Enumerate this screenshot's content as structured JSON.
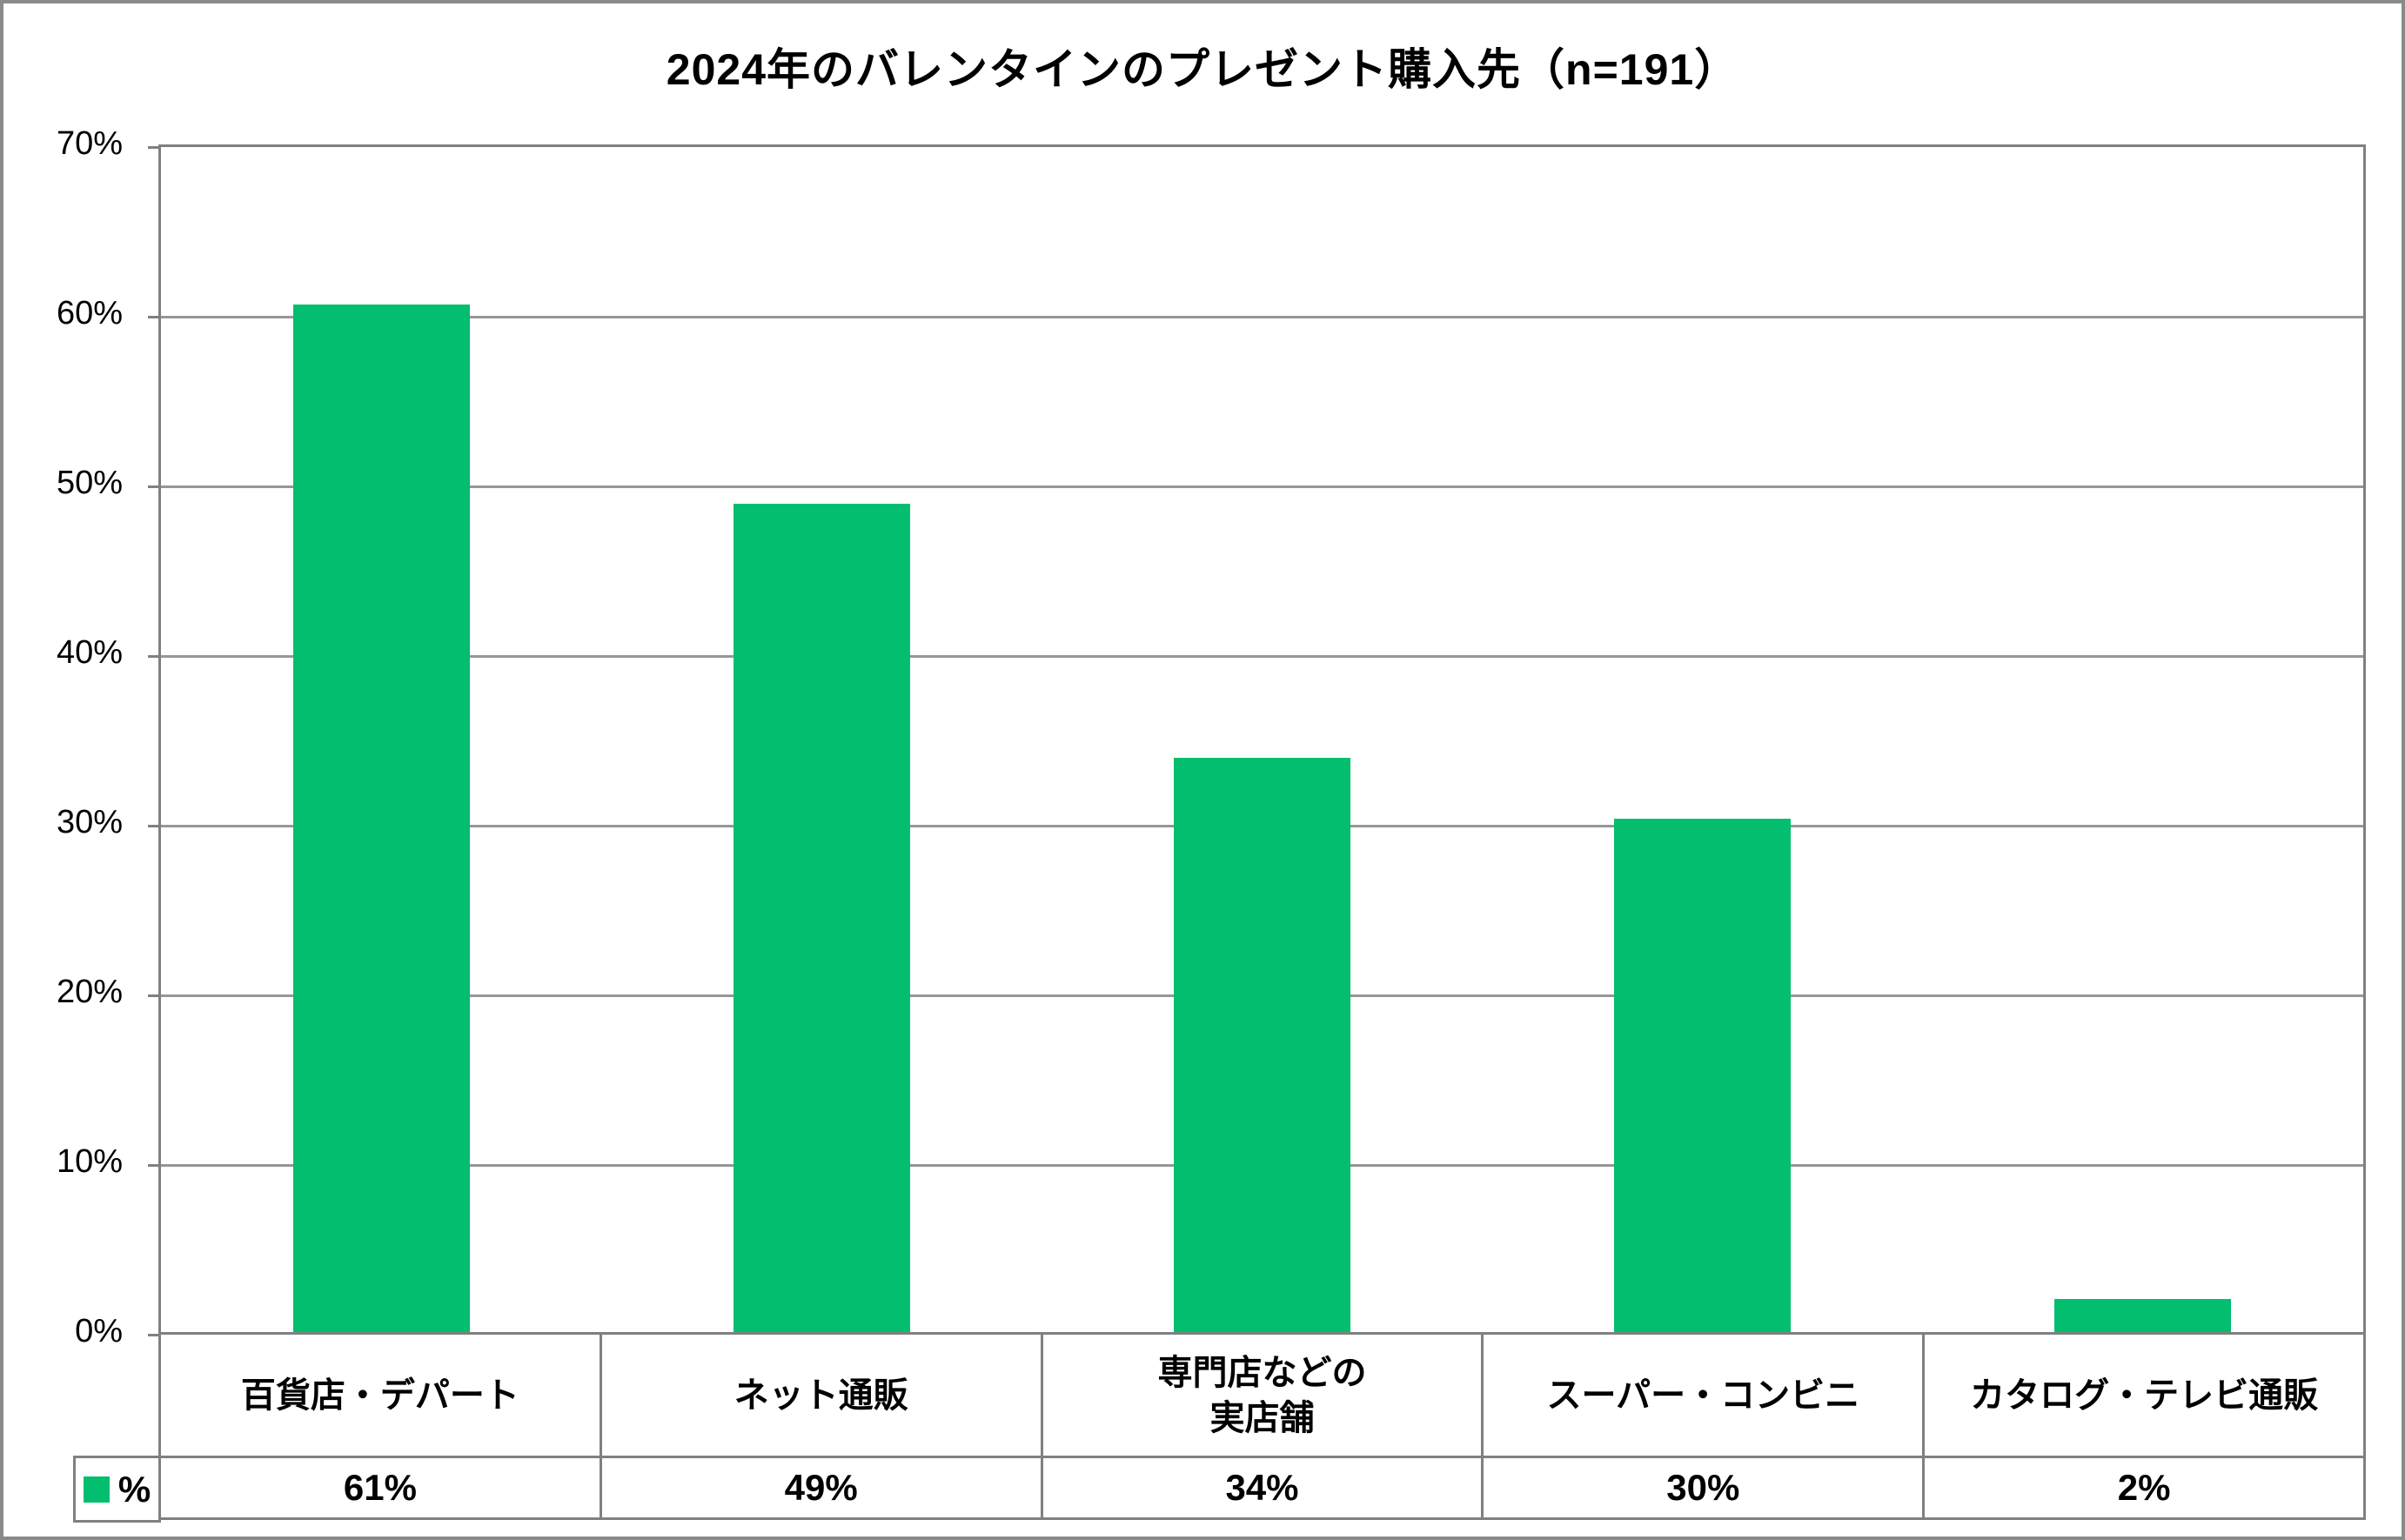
{
  "title": "2024年のバレンタインのプレゼント購入先（n=191）",
  "chart_data": {
    "type": "bar",
    "title": "2024年のバレンタインのプレゼント購入先（n=191）",
    "categories": [
      "百貨店・デパート",
      "ネット通販",
      "専門店などの\n実店舗",
      "スーパー・コンビニ",
      "カタログ・テレビ通販"
    ],
    "series": [
      {
        "name": "%",
        "values": [
          60.7,
          49.0,
          34.0,
          30.4,
          2.1
        ]
      }
    ],
    "table_row_label": "%",
    "table_values": [
      "61%",
      "49%",
      "34%",
      "30%",
      "2%"
    ],
    "xlabel": "",
    "ylabel": "",
    "ylim": [
      0,
      70
    ],
    "ytick_step": 10,
    "ytick_labels": [
      "70%",
      "60%",
      "50%",
      "40%",
      "30%",
      "20%",
      "10%",
      "0%"
    ],
    "grid": true,
    "legend_position": "table-bottom-left",
    "bar_color": "#02BE6E"
  },
  "colors": {
    "bar": "#02BE6E",
    "gridline": "#969696",
    "axis": "#808080",
    "table_border": "#808080",
    "frame_border": "#8A8A8A",
    "text": "#000000",
    "background": "#FFFFFF"
  }
}
